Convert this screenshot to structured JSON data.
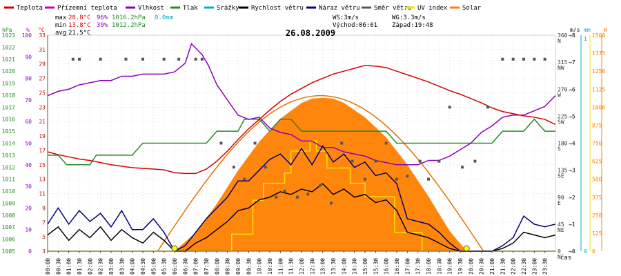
{
  "chart_data": {
    "type": "line",
    "title": "26.08.2009",
    "legend": [
      {
        "label": "Teplota",
        "color": "#d40000"
      },
      {
        "label": "Přízemní teplota",
        "color": "#c000c0"
      },
      {
        "label": "Vlhkost",
        "color": "#8a00b8"
      },
      {
        "label": "Tlak",
        "color": "#228b22"
      },
      {
        "label": "Srážky",
        "color": "#00b0c8"
      },
      {
        "label": "Rychlost větru",
        "color": "#000000"
      },
      {
        "label": "Náraz větru",
        "color": "#00007a"
      },
      {
        "label": "Směr větru",
        "color": "#555555"
      },
      {
        "label": "UV index",
        "color": "#e8e800"
      },
      {
        "label": "Solar",
        "color": "#ff8000"
      }
    ],
    "stats": {
      "max": {
        "label": "max",
        "temp": "28.8°C",
        "hum": "96%",
        "press": "1016.2hPa",
        "rain": "0.0mm"
      },
      "min": {
        "label": "min",
        "temp": "13.8°C",
        "hum": "39%",
        "press": "1012.2hPa"
      },
      "avg": {
        "label": "avg",
        "temp": "21.5°C"
      },
      "ws": "WS:3m/s",
      "wg": "WG:3.3m/s",
      "sunrise": "Východ:06:01",
      "sunset": "Západ:19:48"
    },
    "axes": {
      "hpa": {
        "unit": "hPa",
        "ticks": [
          1005,
          1006,
          1007,
          1008,
          1009,
          1010,
          1011,
          1012,
          1013,
          1014,
          1015,
          1016,
          1017,
          1018,
          1019,
          1020,
          1021,
          1022,
          1023
        ]
      },
      "pct": {
        "unit": "%",
        "ticks": [
          0,
          10,
          20,
          30,
          40,
          50,
          60,
          70,
          80,
          90,
          100
        ]
      },
      "degc": {
        "unit": "°C",
        "ticks": [
          3,
          5,
          7,
          9,
          11,
          13,
          15,
          17,
          19,
          21,
          23,
          25,
          27,
          29,
          31,
          33
        ]
      },
      "ms": {
        "unit": "m/s",
        "ticks": [
          0,
          1,
          2,
          3,
          4,
          5,
          6,
          7,
          8
        ]
      },
      "mm": {
        "unit": "mm",
        "ticks": [
          0,
          1
        ]
      },
      "dir": {
        "labels": [
          "N",
          "NE",
          "E",
          "SE",
          "S",
          "SW",
          "W",
          "NW",
          "N"
        ],
        "values": [
          0,
          45,
          90,
          135,
          180,
          225,
          270,
          315,
          360
        ]
      },
      "w": {
        "unit": "W",
        "ticks": [
          0,
          125,
          250,
          375,
          500,
          625,
          750,
          875,
          1000,
          1125,
          1250,
          1375,
          1500
        ]
      },
      "time_label": "čas",
      "x_ticks": [
        "00:00",
        "00:30",
        "01:00",
        "01:30",
        "02:00",
        "02:30",
        "03:00",
        "03:30",
        "04:00",
        "04:30",
        "05:00",
        "05:30",
        "06:00",
        "06:30",
        "07:00",
        "07:30",
        "08:00",
        "08:30",
        "09:00",
        "09:30",
        "10:00",
        "10:30",
        "11:00",
        "11:30",
        "12:00",
        "12:30",
        "13:00",
        "13:30",
        "14:00",
        "14:30",
        "15:00",
        "15:30",
        "16:00",
        "16:30",
        "17:00",
        "17:30",
        "18:00",
        "18:30",
        "19:00",
        "19:30",
        "20:00",
        "20:30",
        "21:00",
        "21:30",
        "22:00",
        "22:30",
        "23:00",
        "23:30"
      ]
    },
    "series": {
      "temperature": {
        "x": [
          0,
          0.5,
          1,
          1.5,
          2,
          2.5,
          3,
          3.5,
          4,
          4.5,
          5,
          5.5,
          6,
          6.5,
          7,
          7.5,
          8,
          8.5,
          9,
          9.5,
          10,
          10.5,
          11,
          11.5,
          12,
          12.5,
          13,
          13.5,
          14,
          14.5,
          15,
          15.5,
          16,
          16.5,
          17,
          17.5,
          18,
          18.5,
          19,
          19.5,
          20,
          20.5,
          21,
          21.5,
          22,
          22.5,
          23,
          23.5,
          24
        ],
        "y": [
          16.8,
          16.4,
          16.1,
          15.8,
          15.6,
          15.3,
          15.0,
          14.8,
          14.6,
          14.5,
          14.4,
          14.3,
          13.9,
          13.8,
          13.8,
          14.4,
          15.5,
          16.9,
          18.5,
          20.0,
          21.3,
          22.6,
          23.8,
          24.8,
          25.6,
          26.4,
          27.0,
          27.6,
          28.0,
          28.4,
          28.8,
          28.7,
          28.5,
          28.0,
          27.5,
          27.0,
          26.5,
          25.9,
          25.3,
          24.8,
          24.2,
          23.6,
          22.9,
          22.4,
          22.1,
          21.8,
          21.6,
          21.3,
          20.6
        ]
      },
      "humidity": {
        "x": [
          0,
          0.5,
          1,
          1.5,
          2,
          2.5,
          3,
          3.5,
          4,
          4.5,
          5,
          5.5,
          6,
          6.5,
          6.8,
          7,
          7.3,
          7.6,
          8,
          8.5,
          9,
          9.5,
          10,
          10.5,
          11,
          11.5,
          12,
          12.5,
          13,
          13.5,
          14,
          14.5,
          15,
          15.5,
          16,
          16.5,
          17,
          17.5,
          18,
          18.5,
          19,
          19.5,
          20,
          20.5,
          21,
          21.5,
          22,
          22.5,
          23,
          23.5,
          24
        ],
        "y": [
          72,
          74,
          75,
          77,
          78,
          79,
          79,
          81,
          81,
          82,
          82,
          82,
          83,
          87,
          96,
          94,
          91,
          86,
          77,
          70,
          63,
          61,
          62,
          57,
          55,
          54,
          51,
          51,
          48,
          48,
          46,
          45,
          44,
          42,
          41,
          40,
          40,
          40,
          42,
          42,
          44,
          47,
          50,
          55,
          58,
          62,
          63,
          63,
          65,
          67,
          72
        ]
      },
      "pressure": {
        "x": [
          0,
          0.5,
          0.9,
          1.5,
          2,
          2.3,
          3,
          3.5,
          4,
          4.5,
          5,
          5.5,
          6,
          6.5,
          7,
          7.5,
          8,
          8.5,
          9,
          9.3,
          10,
          10.5,
          11,
          11.5,
          12,
          12.5,
          13,
          13.5,
          14,
          14.5,
          15,
          15.5,
          16,
          16.5,
          17,
          17.5,
          18,
          18.5,
          19,
          19.5,
          20,
          20.5,
          21,
          21.5,
          22,
          22.5,
          23,
          23.5,
          24
        ],
        "y": [
          1013,
          1013,
          1012.2,
          1012.2,
          1012.2,
          1013,
          1013,
          1013,
          1013,
          1014,
          1014,
          1014,
          1014,
          1014,
          1014,
          1014,
          1015,
          1015,
          1015,
          1016,
          1016,
          1015,
          1016,
          1016,
          1015,
          1015,
          1015,
          1015,
          1015,
          1015,
          1015,
          1015,
          1015,
          1014,
          1014,
          1014,
          1014,
          1014,
          1014,
          1014,
          1014,
          1014,
          1014,
          1015,
          1015,
          1015,
          1016,
          1015,
          1015
        ]
      },
      "wind_speed": {
        "x": [
          0,
          0.5,
          1,
          1.5,
          2,
          2.5,
          3,
          3.5,
          4,
          4.5,
          5,
          5.5,
          6,
          6.5,
          7,
          7.5,
          8,
          8.5,
          9,
          9.5,
          10,
          10.5,
          11,
          11.5,
          12,
          12.5,
          13,
          13.5,
          14,
          14.5,
          15,
          15.5,
          16,
          16.5,
          17,
          17.5,
          18,
          18.5,
          19,
          19.5,
          20,
          20.5,
          21,
          21.5,
          22,
          22.5,
          23,
          23.5,
          24
        ],
        "y": [
          0.6,
          0.9,
          0.4,
          0.8,
          0.5,
          0.9,
          0.4,
          0.8,
          0.5,
          0.3,
          0.7,
          0.4,
          0,
          0,
          0.3,
          0.5,
          0.8,
          1.1,
          1.5,
          1.6,
          1.9,
          2.0,
          2.2,
          2.1,
          2.3,
          2.2,
          2.5,
          2.1,
          2.3,
          2.0,
          2.1,
          1.8,
          1.9,
          1.5,
          0.7,
          0.6,
          0.5,
          0.3,
          0.1,
          0,
          0,
          0,
          0,
          0.1,
          0.3,
          0.7,
          0.6,
          0.5,
          0.6
        ]
      },
      "wind_gust": {
        "x": [
          0,
          0.5,
          1,
          1.5,
          2,
          2.5,
          3,
          3.5,
          4,
          4.5,
          5,
          5.5,
          6,
          6.5,
          7,
          7.5,
          8,
          8.5,
          9,
          9.5,
          10,
          10.5,
          11,
          11.5,
          12,
          12.5,
          13,
          13.5,
          14,
          14.5,
          15,
          15.5,
          16,
          16.5,
          17,
          17.5,
          18,
          18.5,
          19,
          19.5,
          20,
          20.5,
          21,
          21.5,
          22,
          22.5,
          23,
          23.5,
          24
        ],
        "y": [
          1.0,
          1.6,
          1.0,
          1.5,
          1.1,
          1.4,
          0.9,
          1.5,
          0.8,
          0.8,
          1.2,
          0.7,
          0,
          0.2,
          0.7,
          1.2,
          1.6,
          2.0,
          2.6,
          2.6,
          3.0,
          3.4,
          3.6,
          3.2,
          3.8,
          3.2,
          3.9,
          3.3,
          3.6,
          3.1,
          3.3,
          2.8,
          2.9,
          2.5,
          1.2,
          1.1,
          1.0,
          0.7,
          0.3,
          0,
          0,
          0,
          0,
          0.2,
          0.5,
          1.3,
          1.0,
          0.9,
          1.0
        ]
      },
      "wind_direction": {
        "x": [
          1.2,
          1.5,
          2.5,
          3.7,
          4.5,
          5.5,
          6.2,
          7,
          7.3,
          8.2,
          8.8,
          9.3,
          9.8,
          10.3,
          10.8,
          11.2,
          11.8,
          12.3,
          12.9,
          13.4,
          13.9,
          14.4,
          15.0,
          15.5,
          16.0,
          16.5,
          17.0,
          17.6,
          18.0,
          18.5,
          19.0,
          19.6,
          20.2,
          20.8,
          21.5,
          22.0,
          22.5,
          23.0,
          23.5
        ],
        "y": [
          320,
          320,
          320,
          320,
          320,
          320,
          320,
          320,
          320,
          180,
          140,
          120,
          180,
          140,
          90,
          100,
          90,
          95,
          110,
          80,
          180,
          150,
          120,
          150,
          180,
          120,
          125,
          150,
          120,
          150,
          240,
          140,
          150,
          240,
          320,
          320,
          320,
          320,
          320
        ]
      },
      "uv_index": {
        "x": [
          0,
          8.7,
          8.7,
          9.7,
          9.7,
          10.2,
          10.2,
          11.2,
          11.2,
          11.5,
          11.5,
          12.4,
          12.4,
          12.7,
          12.7,
          13.2,
          13.2,
          14.3,
          14.3,
          15.0,
          15.0,
          16.4,
          16.4,
          17.7,
          17.7,
          24
        ],
        "y": [
          0,
          0,
          1,
          1,
          3,
          3,
          4,
          4,
          4.6,
          4.6,
          5.9,
          5.9,
          6.5,
          6.5,
          5.9,
          5.9,
          4.9,
          4.9,
          4.0,
          4.0,
          3.2,
          3.2,
          1.1,
          1.1,
          0,
          0
        ]
      },
      "solar": {
        "x": [
          6.0,
          7.0,
          8.0,
          9.0,
          10.0,
          11.0,
          12.0,
          12.5,
          13.0,
          13.5,
          14.0,
          15.0,
          16.0,
          17.0,
          18.0,
          19.0,
          19.8
        ],
        "y": [
          0,
          130,
          330,
          560,
          760,
          920,
          1030,
          1060,
          1065,
          1060,
          1030,
          930,
          790,
          600,
          380,
          140,
          0
        ]
      }
    },
    "sun_markers": [
      6.0,
      19.8
    ]
  }
}
